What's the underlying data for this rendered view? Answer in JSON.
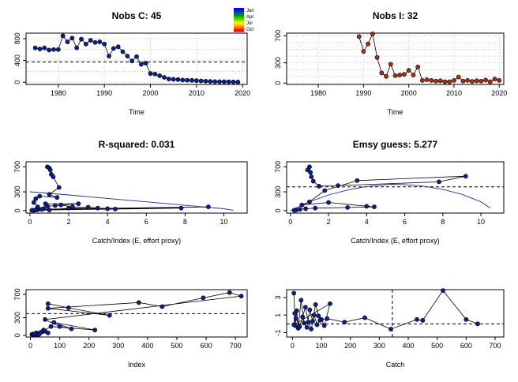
{
  "chart_data": [
    {
      "id": "p1",
      "type": "line",
      "title": "Nobs C: 45",
      "xlabel": "Time",
      "ylabel": "",
      "xlim": [
        1973,
        2021
      ],
      "ylim": [
        -40,
        900
      ],
      "xticks": [
        "1980",
        "1990",
        "2000",
        "2010",
        "2020"
      ],
      "yticks": [
        "0",
        "400",
        "800"
      ],
      "hgrid": [
        0,
        200,
        400,
        600,
        800
      ],
      "vgrid": [
        1980,
        1990,
        2000,
        2010,
        2020
      ],
      "hline": 370,
      "point_color": "#0b2191",
      "x": [
        1975,
        1976,
        1977,
        1978,
        1979,
        1980,
        1981,
        1982,
        1983,
        1984,
        1985,
        1986,
        1987,
        1988,
        1989,
        1990,
        1991,
        1992,
        1993,
        1994,
        1995,
        1996,
        1997,
        1998,
        1999,
        2000,
        2001,
        2002,
        2003,
        2004,
        2005,
        2006,
        2007,
        2008,
        2009,
        2010,
        2011,
        2012,
        2013,
        2014,
        2015,
        2016,
        2017,
        2018,
        2019
      ],
      "y": [
        630,
        610,
        630,
        590,
        600,
        600,
        850,
        740,
        810,
        630,
        790,
        700,
        770,
        730,
        740,
        700,
        480,
        620,
        650,
        560,
        480,
        390,
        470,
        330,
        350,
        160,
        150,
        120,
        90,
        60,
        55,
        50,
        40,
        38,
        35,
        30,
        25,
        20,
        15,
        12,
        10,
        10,
        8,
        6,
        5
      ]
    },
    {
      "id": "p2",
      "type": "line",
      "title": "Nobs I: 32",
      "xlabel": "Time",
      "ylabel": "",
      "xlim": [
        1973,
        2021
      ],
      "ylim": [
        -20,
        740
      ],
      "xticks": [
        "1980",
        "1990",
        "2000",
        "2010",
        "2020"
      ],
      "yticks": [
        "0",
        "300",
        "700"
      ],
      "hgrid": [
        0,
        100,
        200,
        300,
        400,
        500,
        600,
        700
      ],
      "vgrid": [
        1980,
        1990,
        2000,
        2010,
        2020
      ],
      "point_color": "#b02c12",
      "x": [
        1989,
        1990,
        1991,
        1992,
        1993,
        1994,
        1995,
        1996,
        1997,
        1998,
        1999,
        2000,
        2001,
        2002,
        2003,
        2004,
        2005,
        2006,
        2007,
        2008,
        2009,
        2010,
        2011,
        2012,
        2013,
        2014,
        2015,
        2016,
        2017,
        2018,
        2019,
        2020
      ],
      "y": [
        690,
        470,
        580,
        730,
        380,
        150,
        100,
        280,
        110,
        120,
        130,
        190,
        120,
        240,
        40,
        50,
        40,
        30,
        35,
        20,
        20,
        40,
        90,
        30,
        40,
        25,
        35,
        30,
        45,
        20,
        60,
        40
      ]
    },
    {
      "id": "p3",
      "type": "line",
      "title": "R-squared: 0.031",
      "xlabel": "Catch/Index (E, effort proxy)",
      "ylabel": "",
      "xlim": [
        -0.2,
        11.2
      ],
      "ylim": [
        -40,
        780
      ],
      "xticks": [
        "0",
        "2",
        "4",
        "6",
        "8",
        "10"
      ],
      "yticks": [
        "0",
        "300",
        "700"
      ],
      "point_color": "#0b2191",
      "x": [
        0.9,
        1.0,
        1.05,
        1.1,
        1.2,
        1.5,
        1.0,
        1.4,
        0.5,
        0.3,
        0.2,
        0.4,
        0.7,
        0.8,
        2.5,
        0.9,
        1.3,
        1.6,
        2.2,
        3.0,
        3.5,
        4.0,
        4.4,
        2.0,
        1.0,
        0.6,
        0.4,
        0.3,
        0.2,
        0.35,
        9.2,
        0.1,
        7.8,
        0.3
      ],
      "y": [
        700,
        680,
        650,
        580,
        540,
        370,
        260,
        210,
        230,
        190,
        130,
        60,
        30,
        110,
        110,
        70,
        80,
        90,
        60,
        55,
        40,
        30,
        25,
        40,
        10,
        20,
        15,
        10,
        5,
        20,
        60,
        5,
        40,
        10
      ],
      "fit": {
        "x": [
          0,
          2,
          4,
          6,
          8,
          10,
          10.5
        ],
        "y": [
          300,
          250,
          195,
          140,
          85,
          30,
          5
        ]
      }
    },
    {
      "id": "p4",
      "type": "line",
      "title": "Emsy guess: 5.277",
      "xlabel": "Catch/Index (E, effort proxy)",
      "ylabel": "",
      "xlim": [
        -0.2,
        11.2
      ],
      "ylim": [
        -40,
        780
      ],
      "xticks": [
        "0",
        "2",
        "4",
        "6",
        "8",
        "10"
      ],
      "yticks": [
        "0",
        "300",
        "700"
      ],
      "hline": 380,
      "point_color": "#0b2191",
      "x": [
        0.9,
        1.0,
        1.05,
        1.1,
        1.2,
        1.5,
        2.5,
        7.8,
        9.2,
        3.5,
        1.8,
        1.0,
        0.6,
        2.0,
        4.0,
        4.4,
        3.0,
        1.3,
        0.8,
        0.5,
        0.3,
        0.2
      ],
      "y": [
        650,
        700,
        610,
        540,
        470,
        390,
        400,
        460,
        550,
        480,
        320,
        140,
        90,
        130,
        70,
        60,
        50,
        40,
        30,
        20,
        10,
        5
      ],
      "fit": {
        "x": [
          0,
          1,
          2,
          3,
          4,
          5,
          5.3,
          6,
          7,
          8,
          9,
          10,
          10.5
        ],
        "y": [
          0,
          140,
          250,
          330,
          385,
          415,
          420,
          415,
          390,
          340,
          260,
          140,
          40
        ]
      }
    },
    {
      "id": "p5",
      "type": "line",
      "title": "",
      "xlabel": "Index",
      "ylabel": "",
      "xlim": [
        -15,
        740
      ],
      "ylim": [
        -30,
        780
      ],
      "xticks": [
        "0",
        "100",
        "200",
        "300",
        "400",
        "500",
        "600",
        "700"
      ],
      "yticks": [
        "0",
        "300",
        "700"
      ],
      "hline": 370,
      "point_color": "#0b2191",
      "x": [
        60,
        130,
        270,
        60,
        370,
        450,
        590,
        680,
        720,
        50,
        100,
        140,
        80,
        220,
        70,
        40,
        20,
        30,
        10,
        5,
        8,
        12,
        18,
        25,
        30,
        35,
        45,
        50,
        15,
        60
      ],
      "y": [
        540,
        470,
        340,
        460,
        560,
        490,
        640,
        730,
        670,
        270,
        150,
        110,
        220,
        90,
        150,
        60,
        40,
        30,
        20,
        15,
        10,
        8,
        5,
        12,
        18,
        50,
        90,
        70,
        25,
        40
      ]
    },
    {
      "id": "p6",
      "type": "line",
      "title": "",
      "xlabel": "Catch",
      "ylabel": "",
      "xlim": [
        -20,
        730
      ],
      "ylim": [
        -1.5,
        3.9
      ],
      "xticks": [
        "0",
        "100",
        "200",
        "300",
        "400",
        "500",
        "600",
        "700"
      ],
      "yticks": [
        "-1",
        "1",
        "3"
      ],
      "hline": 0,
      "vline": 345,
      "point_color": "#0b2191",
      "x": [
        5,
        10,
        15,
        20,
        30,
        40,
        50,
        60,
        70,
        80,
        90,
        100,
        110,
        130,
        5,
        8,
        12,
        25,
        35,
        45,
        55,
        65,
        75,
        85,
        95,
        120,
        180,
        250,
        340,
        430,
        450,
        520,
        600,
        640
      ],
      "y": [
        3.5,
        -0.2,
        1.5,
        -0.5,
        2.7,
        0.1,
        -0.4,
        1.6,
        0.3,
        2.2,
        0.9,
        0.5,
        -0.2,
        2.3,
        -0.1,
        1.2,
        0.6,
        -0.3,
        0.8,
        1.9,
        0.2,
        -0.6,
        1.0,
        -0.1,
        0.4,
        0.6,
        0.2,
        0.7,
        -0.6,
        0.5,
        0.4,
        3.8,
        0.5,
        0.0
      ]
    }
  ],
  "legend": {
    "labels": [
      "Jan",
      "Apr",
      "Jul",
      "Oct"
    ],
    "colors": [
      "#0000ff",
      "#00aa00",
      "#ffff00",
      "#ff0000"
    ]
  }
}
